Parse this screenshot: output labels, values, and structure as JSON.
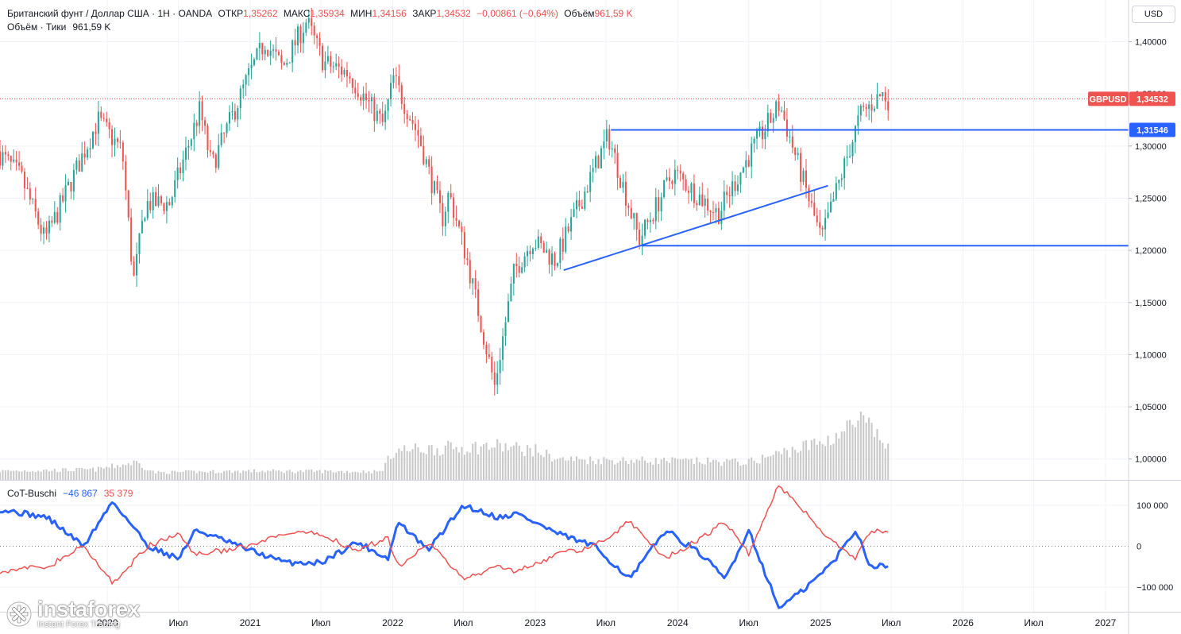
{
  "header": {
    "symbol_title": "Британский фунт / Доллар США · 1Н · OANDA",
    "open_label": "ОТКР",
    "open_value": "1,35262",
    "high_label": "МАКС",
    "high_value": "1,35934",
    "low_label": "МИН",
    "low_value": "1,34156",
    "close_label": "ЗАКР",
    "close_value": "1,34532",
    "change": "−0,00861 (−0,64%)",
    "volume_label": "Объём",
    "volume_value": "961,59 K",
    "volume_row_label": "Объём · Тики",
    "volume_row_value": "961,59 K"
  },
  "currency_button": "USD",
  "price_badges": {
    "symbol": "GBPUSD",
    "last": "1,34532",
    "level": "1,31546"
  },
  "indicator": {
    "name": "CoT-Buschi",
    "value1": "−46 867",
    "value2": "35 379"
  },
  "logo": {
    "brand": "instaforex",
    "tagline": "Instant Forex Trading"
  },
  "colors": {
    "up": "#26a69a",
    "down": "#ef5350",
    "volume": "#c8c8c8",
    "lines": "#2962ff",
    "cot_blue": "#2962ff",
    "cot_red": "#ef5350"
  },
  "chart_data": {
    "type": "candlestick",
    "timeframe": "1W",
    "y_axis_ticks": [
      "1,40000",
      "1,35000",
      "1,30000",
      "1,25000",
      "1,20000",
      "1,15000",
      "1,10000",
      "1,05000",
      "1,00000"
    ],
    "y_range": [
      0.98,
      1.44
    ],
    "x_axis_labels": [
      {
        "label": "2020",
        "date": "2020-01-01"
      },
      {
        "label": "Июл",
        "date": "2020-07-01"
      },
      {
        "label": "2021",
        "date": "2021-01-01"
      },
      {
        "label": "Июл",
        "date": "2021-07-01"
      },
      {
        "label": "2022",
        "date": "2022-01-01"
      },
      {
        "label": "Июл",
        "date": "2022-07-01"
      },
      {
        "label": "2023",
        "date": "2023-01-01"
      },
      {
        "label": "Июл",
        "date": "2023-07-01"
      },
      {
        "label": "2024",
        "date": "2024-01-01"
      },
      {
        "label": "Июл",
        "date": "2024-07-01"
      },
      {
        "label": "2025",
        "date": "2025-01-01"
      },
      {
        "label": "Июл",
        "date": "2025-07-01"
      },
      {
        "label": "2026",
        "date": "2026-01-01"
      },
      {
        "label": "Июл",
        "date": "2026-07-01"
      },
      {
        "label": "2027",
        "date": "2027-01-01"
      }
    ],
    "x_range": [
      "2019-04-01",
      "2027-03-01"
    ],
    "price_path": [
      [
        "2019-04-01",
        1.295
      ],
      [
        "2019-06-01",
        1.27
      ],
      [
        "2019-08-01",
        1.21
      ],
      [
        "2019-09-01",
        1.235
      ],
      [
        "2019-12-15",
        1.325
      ],
      [
        "2020-02-15",
        1.295
      ],
      [
        "2020-03-15",
        1.17
      ],
      [
        "2020-04-15",
        1.245
      ],
      [
        "2020-06-15",
        1.245
      ],
      [
        "2020-09-01",
        1.335
      ],
      [
        "2020-10-01",
        1.28
      ],
      [
        "2021-01-01",
        1.365
      ],
      [
        "2021-02-15",
        1.4
      ],
      [
        "2021-04-01",
        1.375
      ],
      [
        "2021-06-01",
        1.42
      ],
      [
        "2021-07-15",
        1.38
      ],
      [
        "2021-09-15",
        1.37
      ],
      [
        "2021-12-15",
        1.32
      ],
      [
        "2022-01-10",
        1.365
      ],
      [
        "2022-03-15",
        1.31
      ],
      [
        "2022-05-15",
        1.23
      ],
      [
        "2022-06-01",
        1.255
      ],
      [
        "2022-07-15",
        1.195
      ],
      [
        "2022-09-26",
        1.07
      ],
      [
        "2022-11-15",
        1.18
      ],
      [
        "2023-01-01",
        1.21
      ],
      [
        "2023-03-01",
        1.19
      ],
      [
        "2023-07-14",
        1.31
      ],
      [
        "2023-10-01",
        1.21
      ],
      [
        "2023-12-28",
        1.275
      ],
      [
        "2024-04-20",
        1.235
      ],
      [
        "2024-07-15",
        1.295
      ],
      [
        "2024-09-25",
        1.34
      ],
      [
        "2025-01-10",
        1.21
      ],
      [
        "2025-02-20",
        1.26
      ],
      [
        "2025-04-20",
        1.33
      ],
      [
        "2025-06-15",
        1.35
      ],
      [
        "2025-06-29",
        1.345
      ]
    ],
    "horizontal_levels": [
      {
        "price": 1.31546,
        "from": "2023-07-14",
        "to": "2027-03-01",
        "label": "1,31546"
      },
      {
        "price": 1.2045,
        "from": "2023-10-01",
        "to": "2027-03-01"
      }
    ],
    "trendline": {
      "from": [
        "2023-03-15",
        1.181
      ],
      "to": [
        "2025-01-20",
        1.262
      ]
    },
    "last_price": {
      "price": 1.34532,
      "label": "1,34532",
      "symbol": "GBPUSD"
    },
    "volume_path": [
      [
        "2019-04-01",
        0.3
      ],
      [
        "2019-12-01",
        0.35
      ],
      [
        "2020-03-15",
        0.6
      ],
      [
        "2020-05-01",
        0.25
      ],
      [
        "2021-01-01",
        0.3
      ],
      [
        "2021-12-01",
        0.28
      ],
      [
        "2022-01-05",
        1.0
      ],
      [
        "2022-09-26",
        1.15
      ],
      [
        "2023-01-01",
        1.0
      ],
      [
        "2023-03-01",
        0.7
      ],
      [
        "2024-07-01",
        0.6
      ],
      [
        "2024-10-15",
        1.0
      ],
      [
        "2025-01-10",
        1.3
      ],
      [
        "2025-04-15",
        2.0
      ],
      [
        "2025-06-29",
        1.05
      ]
    ],
    "cot": {
      "y_ticks": [
        {
          "label": "100 000",
          "value": 100000
        },
        {
          "label": "0",
          "value": 0
        },
        {
          "label": "−100 000",
          "value": -100000
        }
      ],
      "y_range": [
        -160000,
        160000
      ],
      "series": [
        {
          "name": "−46 867",
          "color": "#2962ff",
          "points": [
            [
              "2019-04-01",
              90000
            ],
            [
              "2019-08-01",
              70000
            ],
            [
              "2019-11-01",
              0
            ],
            [
              "2020-01-15",
              110000
            ],
            [
              "2020-04-15",
              0
            ],
            [
              "2020-07-01",
              -30000
            ],
            [
              "2020-08-15",
              40000
            ],
            [
              "2021-01-01",
              -10000
            ],
            [
              "2021-04-01",
              -40000
            ],
            [
              "2021-07-01",
              -40000
            ],
            [
              "2021-10-01",
              10000
            ],
            [
              "2021-12-20",
              -30000
            ],
            [
              "2022-01-15",
              60000
            ],
            [
              "2022-04-01",
              -10000
            ],
            [
              "2022-07-01",
              100000
            ],
            [
              "2022-09-30",
              70000
            ],
            [
              "2022-11-15",
              80000
            ],
            [
              "2023-03-01",
              30000
            ],
            [
              "2023-06-01",
              0
            ],
            [
              "2023-09-01",
              -80000
            ],
            [
              "2023-12-01",
              40000
            ],
            [
              "2024-03-01",
              -20000
            ],
            [
              "2024-05-01",
              -80000
            ],
            [
              "2024-07-01",
              40000
            ],
            [
              "2024-09-15",
              -150000
            ],
            [
              "2024-11-15",
              -110000
            ],
            [
              "2025-02-01",
              -40000
            ],
            [
              "2025-04-01",
              40000
            ],
            [
              "2025-05-10",
              -50000
            ],
            [
              "2025-06-29",
              -46867
            ]
          ]
        },
        {
          "name": "35 379",
          "color": "#ef5350",
          "points": [
            [
              "2019-04-01",
              -60000
            ],
            [
              "2019-08-01",
              -50000
            ],
            [
              "2019-11-01",
              0
            ],
            [
              "2020-01-15",
              -90000
            ],
            [
              "2020-04-15",
              0
            ],
            [
              "2020-07-01",
              30000
            ],
            [
              "2020-08-15",
              -20000
            ],
            [
              "2021-01-01",
              0
            ],
            [
              "2021-04-01",
              30000
            ],
            [
              "2021-07-01",
              30000
            ],
            [
              "2021-10-01",
              -10000
            ],
            [
              "2021-12-20",
              20000
            ],
            [
              "2022-01-15",
              -50000
            ],
            [
              "2022-04-01",
              10000
            ],
            [
              "2022-07-01",
              -80000
            ],
            [
              "2022-09-30",
              -50000
            ],
            [
              "2022-11-15",
              -60000
            ],
            [
              "2023-03-01",
              -20000
            ],
            [
              "2023-06-01",
              0
            ],
            [
              "2023-09-01",
              60000
            ],
            [
              "2023-12-01",
              -30000
            ],
            [
              "2024-03-01",
              20000
            ],
            [
              "2024-05-01",
              60000
            ],
            [
              "2024-07-01",
              -20000
            ],
            [
              "2024-09-15",
              150000
            ],
            [
              "2024-11-15",
              90000
            ],
            [
              "2025-02-01",
              10000
            ],
            [
              "2025-04-01",
              -30000
            ],
            [
              "2025-05-10",
              40000
            ],
            [
              "2025-06-29",
              35379
            ]
          ]
        }
      ]
    }
  }
}
